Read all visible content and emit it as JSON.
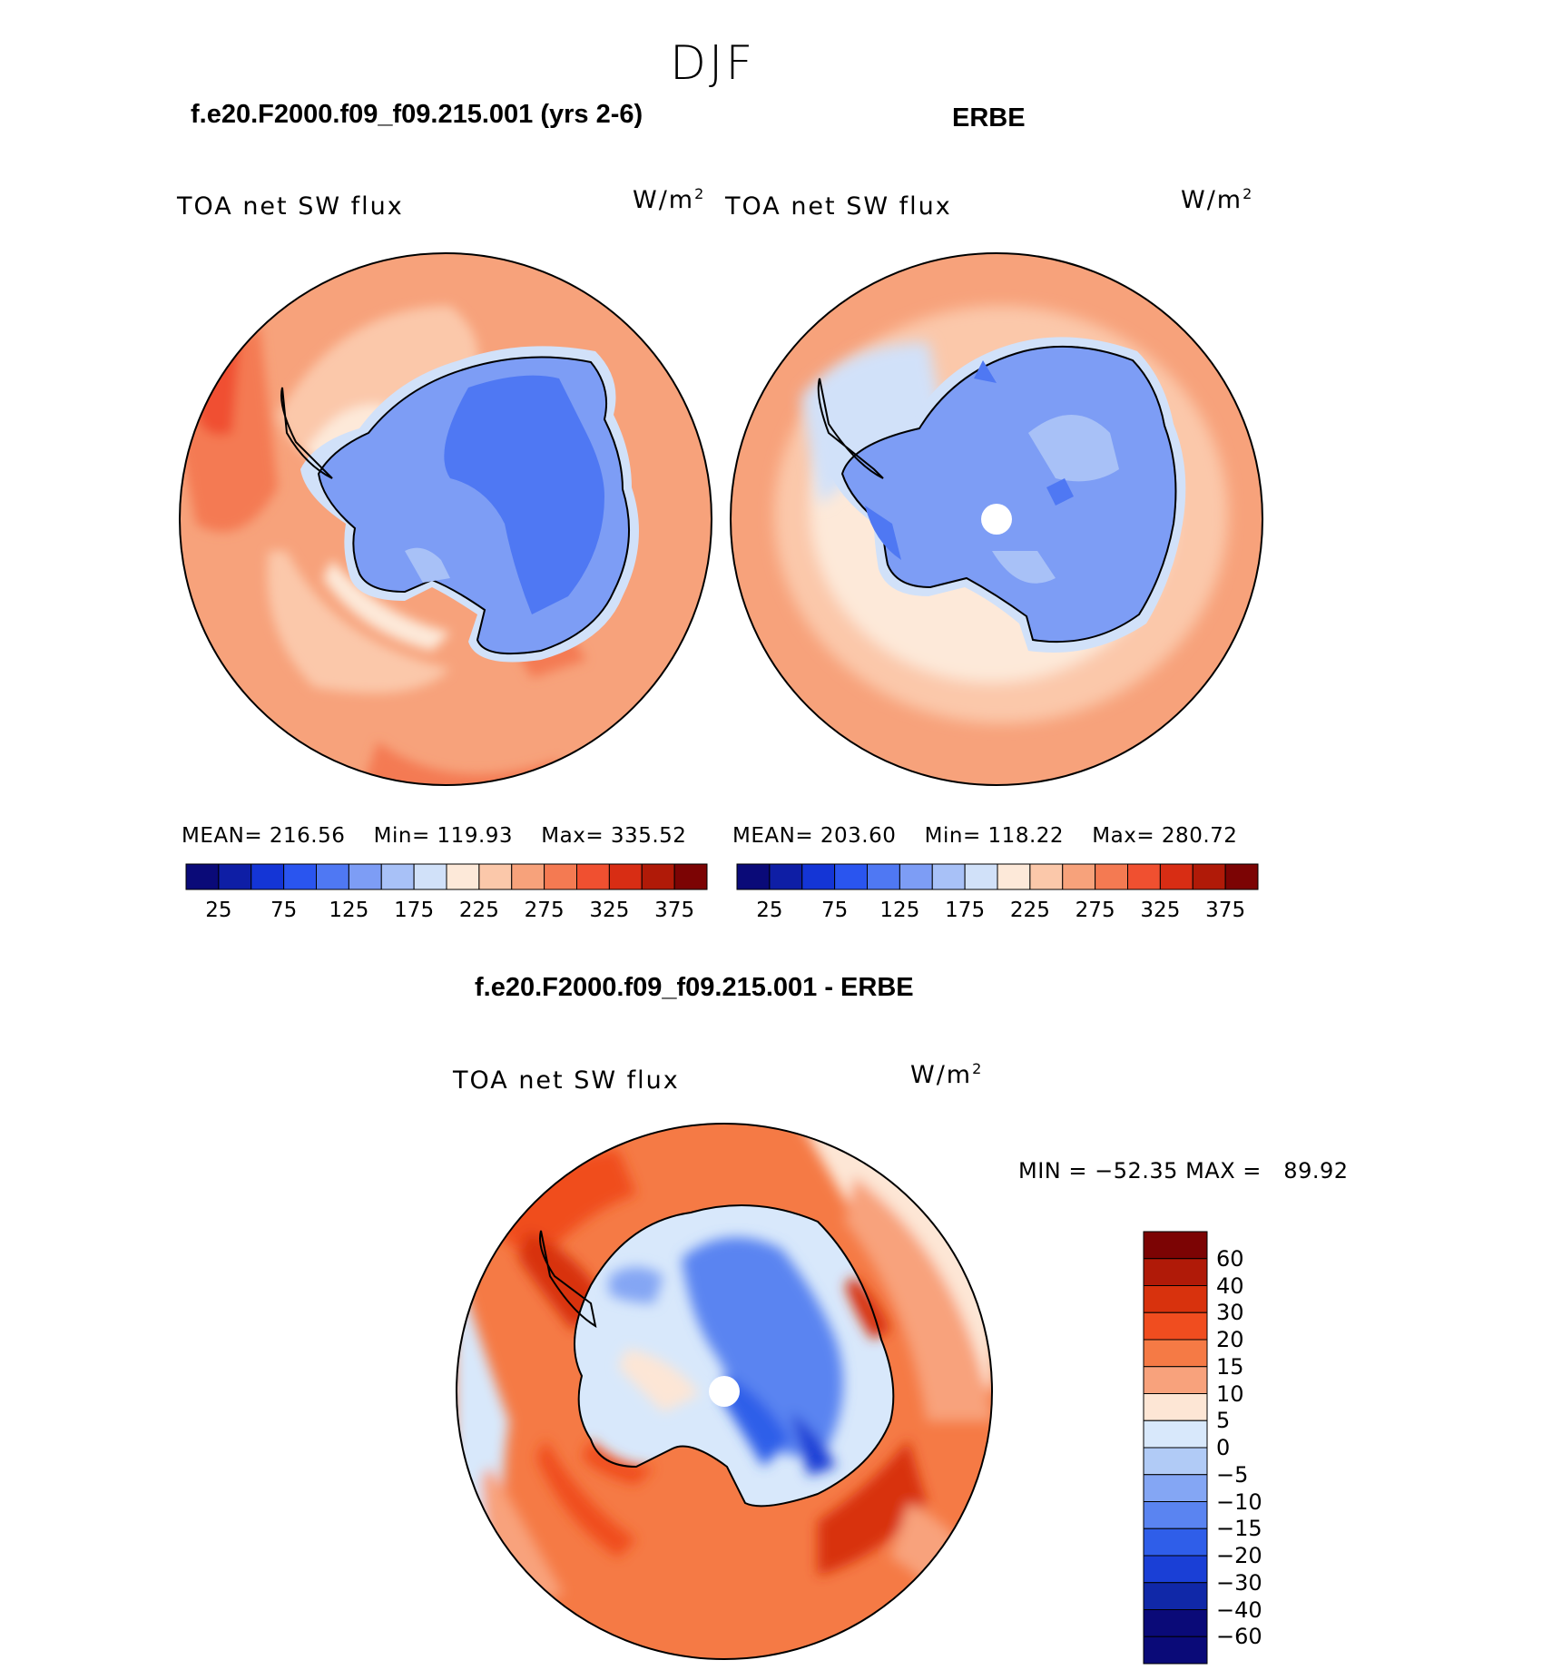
{
  "season": "DJF",
  "panels": [
    {
      "title": "f.e20.F2000.f09_f09.215.001 (yrs 2-6)",
      "variable": "TOA net SW flux",
      "units_base": "W/m",
      "units_exp": "2",
      "stats": {
        "mean_label": "MEAN=",
        "mean": "216.56",
        "min_label": "Min=",
        "min": "119.93",
        "max_label": "Max=",
        "max": "335.52"
      }
    },
    {
      "title": "ERBE",
      "variable": "TOA net SW flux",
      "units_base": "W/m",
      "units_exp": "2",
      "stats": {
        "mean_label": "MEAN=",
        "mean": "203.60",
        "min_label": "Min=",
        "min": "118.22",
        "max_label": "Max=",
        "max": "280.72"
      }
    }
  ],
  "abs_colorbar": {
    "colors": [
      "#0a0a78",
      "#0e1ea5",
      "#1435d6",
      "#2a55ef",
      "#4f78f3",
      "#7d9df5",
      "#a8c1f7",
      "#d1e1f9",
      "#fde9d9",
      "#fbc8aa",
      "#f7a27b",
      "#f47a52",
      "#f05030",
      "#d82d14",
      "#b01a08",
      "#7c0404"
    ],
    "ticks": [
      "25",
      "75",
      "125",
      "175",
      "225",
      "275",
      "325",
      "375"
    ]
  },
  "diff_panel": {
    "title": "f.e20.F2000.f09_f09.215.001 - ERBE",
    "variable": "TOA net SW flux",
    "units_base": "W/m",
    "units_exp": "2",
    "min_label": "MIN =",
    "min": "−52.35",
    "max_label": "MAX =",
    "max": "89.92",
    "colors": [
      "#7c0404",
      "#b01a08",
      "#d8320d",
      "#f04d1f",
      "#f57a45",
      "#f8a27c",
      "#fde6d5",
      "#d8e8fb",
      "#b1cbf6",
      "#84a6f4",
      "#5a84f1",
      "#2f5ee9",
      "#1a3fd6",
      "#1028a8",
      "#0a0a78"
    ],
    "ticks": [
      "60",
      "40",
      "30",
      "20",
      "15",
      "10",
      "5",
      "0",
      "−5",
      "−10",
      "−15",
      "−20",
      "−30",
      "−40",
      "−60"
    ]
  }
}
